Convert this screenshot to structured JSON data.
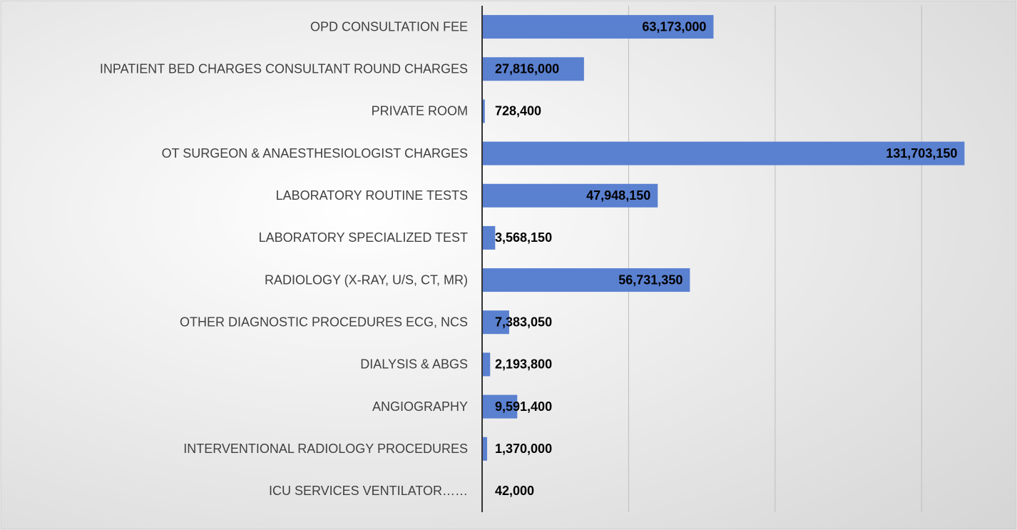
{
  "chart_data": {
    "type": "bar",
    "orientation": "horizontal",
    "categories": [
      "OPD CONSULTATION FEE",
      "INPATIENT BED CHARGES CONSULTANT ROUND CHARGES",
      "PRIVATE ROOM",
      "OT SURGEON & ANAESTHESIOLOGIST CHARGES",
      "LABORATORY ROUTINE TESTS",
      "LABORATORY SPECIALIZED TEST",
      "RADIOLOGY (X-RAY, U/S, CT, MR)",
      "OTHER DIAGNOSTIC PROCEDURES ECG, NCS",
      "DIALYSIS & ABGS",
      "ANGIOGRAPHY",
      "INTERVENTIONAL RADIOLOGY PROCEDURES",
      "ICU SERVICES VENTILATOR……"
    ],
    "values": [
      63173000,
      27816000,
      728400,
      131703150,
      47948150,
      3568150,
      56731350,
      7383050,
      2193800,
      9591400,
      1370000,
      42000
    ],
    "value_labels": [
      "63,173,000",
      "27,816,000",
      "728,400",
      "131,703,150",
      "47,948,150",
      "3,568,150",
      "56,731,350",
      "7,383,050",
      "2,193,800",
      "9,591,400",
      "1,370,000",
      "42,000"
    ],
    "color": "#5a80d0",
    "xlim": [
      0,
      140000000
    ],
    "xticks": [
      0,
      40000000,
      80000000,
      120000000
    ],
    "grid": true
  }
}
